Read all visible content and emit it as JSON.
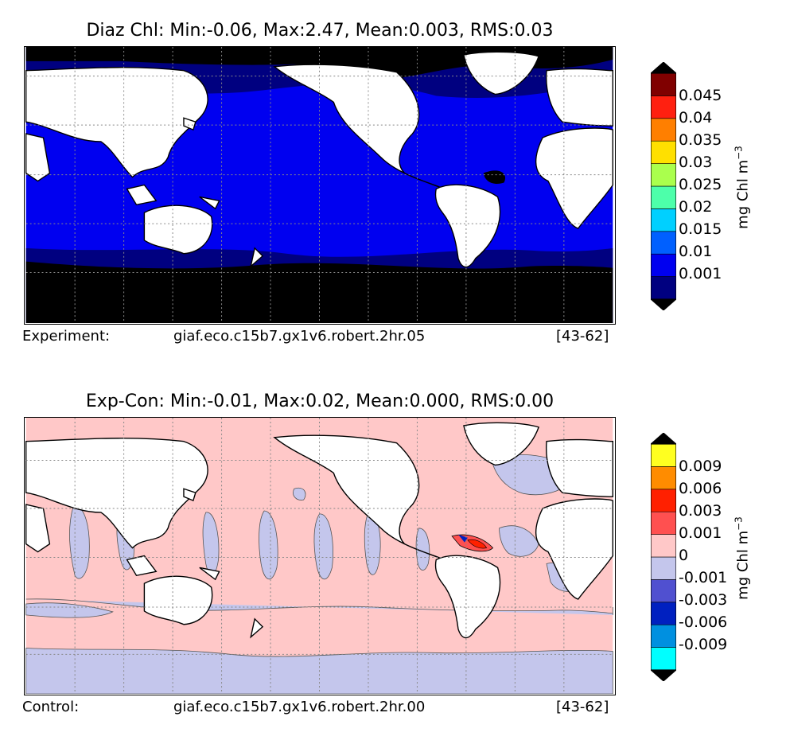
{
  "chart_data": [
    {
      "type": "heatmap",
      "map": "global ocean",
      "title": "Diaz Chl: Min:-0.06, Max:2.47, Mean:0.003, RMS:0.03",
      "colorbar": {
        "unit": "mg Chl m",
        "unit_exp": "−3",
        "extend": "both",
        "tick_labels": [
          "0.045",
          "0.04",
          "0.035",
          "0.03",
          "0.025",
          "0.02",
          "0.015",
          "0.01",
          "0.001"
        ],
        "colors": [
          "#000080",
          "#0000f0",
          "#0060ff",
          "#00d0ff",
          "#4dffaa",
          "#aaff4d",
          "#ffe000",
          "#ff7f00",
          "#ff2010",
          "#800000"
        ],
        "under_color": "#000000",
        "over_color": "#000000"
      },
      "footer": {
        "label": "Experiment:",
        "case": "giaf.eco.c15b7.gx1v6.robert.2hr.05",
        "years": "[43-62]"
      },
      "grid": true
    },
    {
      "type": "heatmap",
      "map": "global ocean",
      "title": "Exp-Con: Min:-0.01, Max:0.02, Mean:0.000, RMS:0.00",
      "colorbar": {
        "unit": "mg Chl m",
        "unit_exp": "−3",
        "extend": "both",
        "tick_labels": [
          "0.009",
          "0.006",
          "0.003",
          "0.001",
          "0",
          "-0.001",
          "-0.003",
          "-0.006",
          "-0.009"
        ],
        "colors": [
          "#00ffff",
          "#0090e0",
          "#0020c0",
          "#5050d0",
          "#c4c6ec",
          "#ffc8c8",
          "#ff5050",
          "#ff2000",
          "#ff8c00",
          "#ffff20"
        ],
        "under_color": "#000000",
        "over_color": "#000000"
      },
      "footer": {
        "label": "Control:",
        "case": "giaf.eco.c15b7.gx1v6.robert.2hr.00",
        "years": "[43-62]"
      },
      "grid": true
    }
  ]
}
